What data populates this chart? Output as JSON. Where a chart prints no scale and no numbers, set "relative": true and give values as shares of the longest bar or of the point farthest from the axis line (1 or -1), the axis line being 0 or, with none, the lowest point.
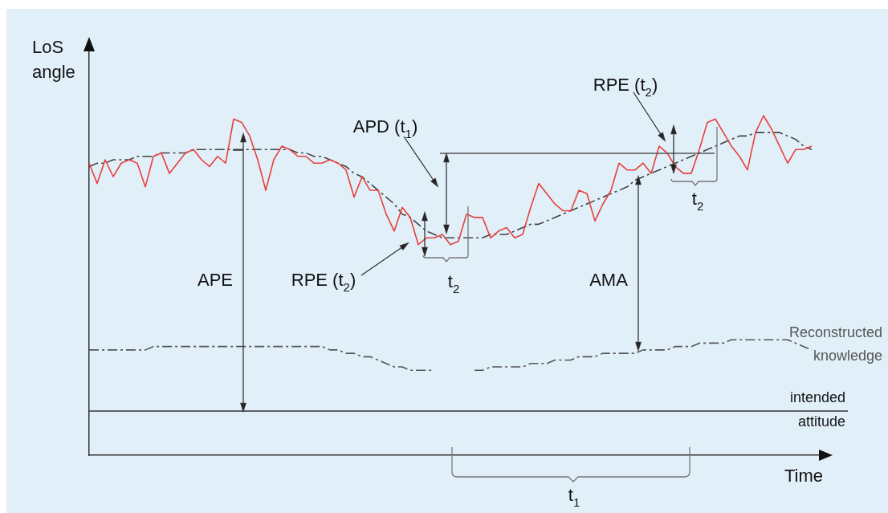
{
  "chart_data": {
    "type": "line",
    "relative": true,
    "xlabel": "Time",
    "ylabel": "LoS angle",
    "categories": [
      null,
      null,
      null,
      null,
      null,
      null,
      null,
      null,
      null,
      null,
      null,
      null,
      null,
      null,
      null,
      null,
      null,
      null,
      null,
      null,
      null,
      null,
      null,
      null,
      null,
      null,
      null,
      null,
      null,
      null,
      null,
      null,
      null,
      null,
      null,
      null,
      null,
      null,
      null,
      null,
      null,
      null,
      null,
      null,
      null,
      null,
      null,
      null,
      null,
      null,
      null,
      null,
      null,
      null,
      null,
      null,
      null,
      null,
      null,
      null,
      null,
      null,
      null,
      null,
      null,
      null,
      null,
      null,
      null,
      null,
      null,
      null,
      null,
      null,
      null,
      null,
      null,
      null,
      null,
      null,
      null,
      null,
      null,
      null,
      null,
      null,
      null,
      null,
      null,
      null,
      null,
      null,
      null
    ],
    "series": [
      {
        "color": "#e8403c",
        "line_style": "solid",
        "values": [
          0.86,
          0.8,
          0.87,
          0.82,
          0.86,
          0.87,
          0.86,
          0.79,
          0.88,
          0.89,
          0.83,
          0.86,
          0.89,
          0.9,
          0.87,
          0.85,
          0.88,
          0.86,
          0.99,
          0.98,
          0.94,
          0.87,
          0.78,
          0.87,
          0.91,
          0.9,
          0.88,
          0.88,
          0.86,
          0.86,
          0.87,
          0.86,
          0.84,
          0.76,
          0.82,
          0.78,
          0.78,
          0.71,
          0.66,
          0.73,
          0.7,
          0.62,
          0.64,
          0.64,
          0.65,
          0.62,
          0.63,
          0.71,
          0.7,
          0.7,
          0.64,
          0.66,
          0.67,
          0.64,
          0.65,
          0.73,
          0.8,
          0.77,
          0.74,
          0.72,
          0.72,
          0.78,
          0.77,
          0.69,
          0.74,
          0.78,
          0.86,
          0.84,
          0.84,
          0.86,
          0.83,
          0.91,
          0.89,
          0.85,
          0.83,
          0.83,
          0.9,
          0.98,
          0.99,
          0.95,
          0.91,
          0.88,
          0.84,
          0.95,
          1,
          0.96,
          0.91,
          0.86,
          0.9,
          0.9,
          0.91,
          null,
          null
        ]
      },
      {
        "color": "#444444",
        "line_style": "dashed",
        "values": [
          0.85,
          0.86,
          0.86,
          0.87,
          0.87,
          0.87,
          0.88,
          0.88,
          0.88,
          0.89,
          0.89,
          0.89,
          0.89,
          0.9,
          0.9,
          0.9,
          0.9,
          0.9,
          0.9,
          0.9,
          0.9,
          0.9,
          0.9,
          0.9,
          0.9,
          0.9,
          0.89,
          0.89,
          0.88,
          0.88,
          0.87,
          0.86,
          0.85,
          0.83,
          0.82,
          0.8,
          0.78,
          0.76,
          0.74,
          0.71,
          0.7,
          0.68,
          0.66,
          0.65,
          0.64,
          0.64,
          0.64,
          0.64,
          0.64,
          0.64,
          0.65,
          0.65,
          0.65,
          0.66,
          0.67,
          0.68,
          0.68,
          0.69,
          0.7,
          0.71,
          0.72,
          0.73,
          0.74,
          0.75,
          0.76,
          0.77,
          0.78,
          0.79,
          0.81,
          0.82,
          0.83,
          0.84,
          0.85,
          0.86,
          0.87,
          0.88,
          0.89,
          0.9,
          0.91,
          0.92,
          0.93,
          0.94,
          0.94,
          0.95,
          0.95,
          0.95,
          0.95,
          0.94,
          0.93,
          0.91,
          0.9,
          null,
          null
        ]
      },
      {
        "name": "Reconstructed knowledge",
        "color": "#555555",
        "line_style": "dashed",
        "values": [
          0.31,
          0.31,
          0.31,
          0.31,
          0.31,
          0.31,
          0.31,
          0.31,
          0.32,
          0.32,
          0.32,
          0.32,
          0.32,
          0.32,
          0.32,
          0.32,
          0.32,
          0.32,
          0.32,
          0.32,
          0.32,
          0.32,
          0.32,
          0.32,
          0.32,
          0.32,
          0.32,
          0.32,
          0.32,
          0.32,
          0.31,
          0.31,
          0.3,
          0.3,
          0.29,
          0.29,
          0.28,
          0.27,
          0.26,
          0.26,
          0.25,
          0.25,
          0.25,
          0.25,
          null,
          null,
          null,
          null,
          0.25,
          0.25,
          0.26,
          0.26,
          0.26,
          0.26,
          0.26,
          0.27,
          0.27,
          0.27,
          0.28,
          0.28,
          0.28,
          0.29,
          0.29,
          0.29,
          0.3,
          0.3,
          0.3,
          0.3,
          0.3,
          0.31,
          0.31,
          0.31,
          0.31,
          0.32,
          0.32,
          0.32,
          0.33,
          0.33,
          0.33,
          0.33,
          0.34,
          0.34,
          0.34,
          0.34,
          0.34,
          0.34,
          0.34,
          0.34,
          0.33,
          0.32,
          0.31,
          null,
          null
        ]
      }
    ],
    "ref_lines": [
      {
        "axis": "y",
        "value": 0.13,
        "label": "intended attitude",
        "color": "#333333"
      }
    ],
    "annotations": [
      "APD (t$_{1}$)",
      "RPE (t$_{2}$)",
      "APE",
      "RPE (t$_{2}$)",
      "t$_{2}$",
      "AMA",
      "t$_{2}$",
      "t$_{1}$"
    ],
    "grid": false,
    "legend": false,
    "marker": "none"
  }
}
